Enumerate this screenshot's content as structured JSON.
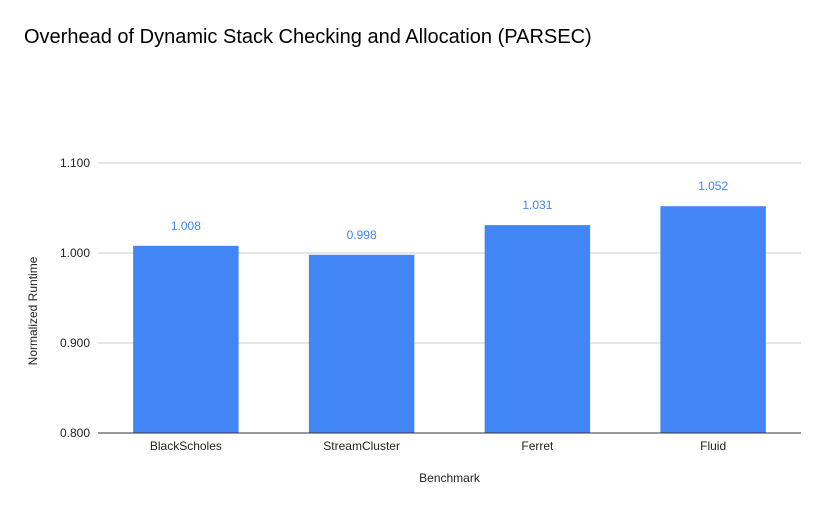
{
  "chart_data": {
    "type": "bar",
    "title": "Overhead of Dynamic Stack Checking and Allocation (PARSEC)",
    "xlabel": "Benchmark",
    "ylabel": "Normalized Runtime",
    "categories": [
      "BlackScholes",
      "StreamCluster",
      "Ferret",
      "Fluid"
    ],
    "values": [
      1.008,
      0.998,
      1.031,
      1.052
    ],
    "data_labels": [
      "1.008",
      "0.998",
      "1.031",
      "1.052"
    ],
    "ylim": [
      0.8,
      1.1
    ],
    "yticks": [
      0.8,
      0.9,
      1.0,
      1.1
    ],
    "ytick_labels": [
      "0.800",
      "0.900",
      "1.000",
      "1.100"
    ],
    "grid": true,
    "legend": "none",
    "bar_color": "#4285f4",
    "label_color": "#4285f4",
    "grid_color": "#cccccc"
  }
}
